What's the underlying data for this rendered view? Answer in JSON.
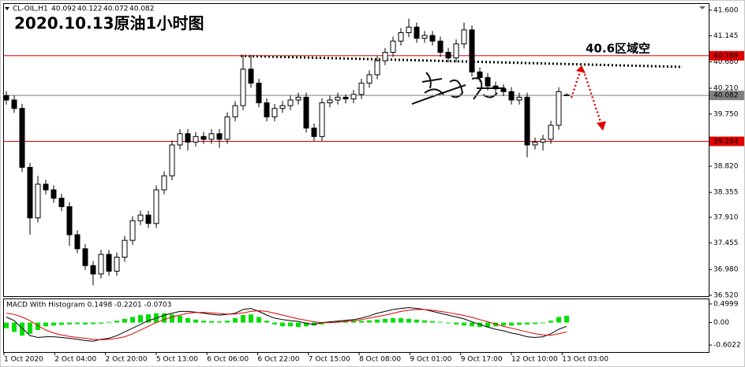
{
  "chart_data": {
    "type": "candlestick",
    "symbol": "CL-OIL,H1",
    "title": "2020.10.13原油1小时图",
    "annotation": "40.6区域空",
    "x_labels": [
      "1 Oct 2020",
      "2 Oct 04:00",
      "2 Oct 20:00",
      "5 Oct 13:00",
      "6 Oct 06:00",
      "6 Oct 22:00",
      "7 Oct 15:00",
      "8 Oct 08:00",
      "9 Oct 01:00",
      "9 Oct 17:00",
      "12 Oct 10:00",
      "13 Oct 03:00"
    ],
    "open": [
      40.08,
      40.0,
      39.85,
      38.8,
      37.9,
      38.5,
      38.4,
      38.25,
      38.1,
      37.6,
      37.35,
      37.05,
      36.9,
      37.25,
      36.95,
      37.2,
      37.5,
      37.85,
      37.95,
      37.8,
      38.4,
      38.65,
      39.2,
      39.4,
      39.25,
      39.35,
      39.3,
      39.4,
      39.3,
      39.7,
      39.9,
      40.55,
      40.3,
      39.95,
      39.7,
      39.85,
      39.9,
      40.0,
      40.05,
      39.5,
      39.35,
      39.95,
      40.0,
      40.05,
      40.02,
      40.1,
      40.3,
      40.45,
      40.7,
      40.85,
      41.05,
      41.2,
      41.3,
      41.1,
      41.15,
      41.05,
      40.85,
      40.75,
      41.0,
      41.25,
      40.5,
      40.4,
      40.25,
      40.2,
      40.15,
      40.0,
      40.05,
      39.2,
      39.25,
      39.3,
      39.55,
      40.092
    ],
    "high": [
      40.16,
      40.08,
      39.93,
      38.88,
      38.65,
      38.58,
      38.48,
      38.33,
      38.18,
      37.68,
      37.43,
      37.13,
      37.33,
      37.33,
      37.28,
      37.58,
      37.93,
      38.03,
      38.03,
      38.48,
      38.73,
      39.28,
      39.48,
      39.48,
      39.43,
      39.43,
      39.48,
      39.48,
      39.78,
      39.98,
      40.8,
      40.8,
      40.38,
      40.03,
      39.93,
      39.98,
      40.08,
      40.13,
      40.13,
      39.58,
      40.03,
      40.08,
      40.13,
      40.1,
      40.18,
      40.38,
      40.53,
      40.78,
      40.93,
      41.13,
      41.28,
      41.45,
      41.38,
      41.23,
      41.23,
      41.13,
      40.93,
      41.08,
      41.38,
      41.33,
      40.58,
      40.48,
      40.33,
      40.28,
      40.23,
      40.13,
      40.13,
      39.33,
      39.38,
      39.63,
      40.23,
      40.122
    ],
    "low": [
      39.92,
      39.77,
      38.72,
      37.6,
      37.82,
      38.32,
      38.17,
      38.02,
      37.4,
      37.27,
      36.97,
      36.7,
      36.82,
      36.87,
      36.87,
      37.12,
      37.42,
      37.77,
      37.72,
      37.72,
      38.32,
      38.57,
      39.12,
      39.1,
      39.17,
      39.22,
      39.22,
      39.15,
      39.22,
      39.62,
      39.82,
      40.22,
      39.87,
      39.62,
      39.62,
      39.77,
      39.82,
      39.92,
      39.42,
      39.27,
      39.27,
      39.87,
      39.92,
      39.94,
      39.94,
      40.02,
      40.22,
      40.37,
      40.62,
      40.77,
      40.97,
      41.12,
      41.02,
      41.02,
      40.97,
      40.77,
      40.67,
      40.67,
      40.92,
      40.42,
      40.32,
      40.17,
      40.12,
      40.07,
      39.92,
      39.92,
      38.98,
      39.12,
      39.1,
      39.22,
      39.47,
      40.072
    ],
    "close": [
      40.0,
      39.85,
      38.8,
      37.9,
      38.5,
      38.4,
      38.25,
      38.1,
      37.6,
      37.35,
      37.05,
      36.9,
      37.25,
      36.95,
      37.2,
      37.5,
      37.85,
      37.95,
      37.8,
      38.4,
      38.65,
      39.2,
      39.4,
      39.25,
      39.35,
      39.3,
      39.4,
      39.3,
      39.7,
      39.9,
      40.55,
      40.3,
      39.95,
      39.7,
      39.85,
      39.9,
      40.0,
      40.05,
      39.5,
      39.35,
      39.95,
      40.0,
      40.05,
      40.02,
      40.1,
      40.3,
      40.45,
      40.7,
      40.85,
      41.05,
      41.2,
      41.3,
      41.1,
      41.15,
      41.05,
      40.85,
      40.75,
      41.0,
      41.25,
      40.5,
      40.4,
      40.25,
      40.2,
      40.15,
      40.0,
      40.05,
      39.2,
      39.25,
      39.3,
      39.55,
      40.15,
      40.082
    ],
    "up_color": "#ffffff",
    "down_color": "#000000",
    "ylim": [
      36.506,
      41.726
    ],
    "yticks": [
      {
        "value": 41.6,
        "label": "41.600"
      },
      41.145,
      {
        "value": 40.68,
        "label": "40.680"
      },
      {
        "value": 40.21,
        "label": "40.210"
      },
      {
        "value": 39.75,
        "label": "39.750"
      },
      39.285,
      {
        "value": 38.82,
        "label": "38.820"
      },
      38.355,
      {
        "value": 37.91,
        "label": "37.910"
      },
      37.455,
      {
        "value": 36.98,
        "label": "36.980"
      },
      {
        "value": 36.52,
        "label": "36.520"
      }
    ],
    "levels": [
      {
        "value": 40.789,
        "color": "#e00000"
      },
      {
        "value": 40.082,
        "color": "#808080"
      },
      {
        "value": 39.264,
        "color": "#e00000"
      }
    ],
    "indicator": {
      "type": "macd",
      "label": "MACD With Histogram 0.1498 -0.2201 -0.0703",
      "ylim": [
        -0.79,
        0.625
      ],
      "yticks": [
        0.4999,
        {
          "value": 0,
          "label": "0.00"
        },
        -0.6022
      ],
      "histogram": {
        "color": "#00e000",
        "values": [
          -0.15,
          -0.25,
          -0.35,
          -0.3,
          -0.2,
          -0.1,
          -0.08,
          -0.06,
          -0.05,
          -0.04,
          -0.05,
          -0.04,
          -0.03,
          0.02,
          0.05,
          0.1,
          0.15,
          0.2,
          0.22,
          0.25,
          0.25,
          0.22,
          0.18,
          0.12,
          0.08,
          0.05,
          0.04,
          0.03,
          0.05,
          0.12,
          0.2,
          0.22,
          0.15,
          0.05,
          -0.05,
          -0.1,
          -0.1,
          -0.12,
          -0.1,
          -0.08,
          -0.05,
          0.02,
          0.04,
          0.05,
          0.06,
          0.05,
          0.06,
          0.08,
          0.1,
          0.12,
          0.12,
          0.1,
          0.08,
          0.06,
          0.04,
          0.02,
          -0.02,
          -0.05,
          -0.08,
          -0.1,
          -0.12,
          -0.12,
          -0.1,
          -0.08,
          -0.08,
          -0.06,
          -0.05,
          -0.04,
          -0.02,
          0.05,
          0.15,
          0.18
        ]
      },
      "series": [
        {
          "color": "#000000",
          "values": [
            0.15,
            0.05,
            -0.15,
            -0.35,
            -0.4,
            -0.38,
            -0.38,
            -0.4,
            -0.42,
            -0.45,
            -0.48,
            -0.5,
            -0.45,
            -0.42,
            -0.35,
            -0.25,
            -0.15,
            -0.05,
            0.05,
            0.12,
            0.2,
            0.25,
            0.3,
            0.3,
            0.28,
            0.25,
            0.22,
            0.2,
            0.22,
            0.25,
            0.35,
            0.38,
            0.3,
            0.2,
            0.12,
            0.08,
            0.05,
            0.03,
            -0.02,
            -0.05,
            0.0,
            0.02,
            0.04,
            0.06,
            0.08,
            0.12,
            0.18,
            0.25,
            0.3,
            0.35,
            0.38,
            0.4,
            0.38,
            0.35,
            0.3,
            0.25,
            0.2,
            0.15,
            0.1,
            0.02,
            -0.05,
            -0.12,
            -0.18,
            -0.22,
            -0.28,
            -0.32,
            -0.38,
            -0.4,
            -0.38,
            -0.3,
            -0.18,
            -0.1
          ]
        },
        {
          "color": "#e00000",
          "values": [
            0.25,
            0.22,
            0.15,
            0.05,
            -0.08,
            -0.2,
            -0.28,
            -0.33,
            -0.37,
            -0.4,
            -0.42,
            -0.45,
            -0.46,
            -0.45,
            -0.42,
            -0.38,
            -0.3,
            -0.2,
            -0.1,
            0.0,
            0.08,
            0.15,
            0.2,
            0.25,
            0.27,
            0.27,
            0.26,
            0.24,
            0.23,
            0.23,
            0.26,
            0.3,
            0.32,
            0.3,
            0.25,
            0.2,
            0.15,
            0.1,
            0.06,
            0.02,
            0.0,
            0.0,
            0.01,
            0.03,
            0.05,
            0.08,
            0.12,
            0.16,
            0.2,
            0.25,
            0.3,
            0.33,
            0.35,
            0.35,
            0.33,
            0.3,
            0.27,
            0.23,
            0.19,
            0.14,
            0.08,
            0.02,
            -0.04,
            -0.1,
            -0.15,
            -0.2,
            -0.25,
            -0.3,
            -0.33,
            -0.34,
            -0.3,
            -0.25
          ]
        }
      ]
    }
  }
}
